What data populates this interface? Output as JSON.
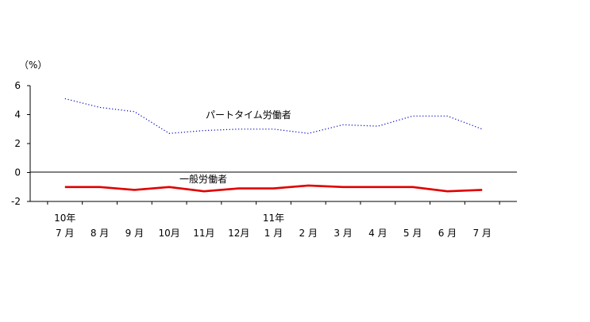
{
  "chart_data": {
    "type": "line",
    "y_unit_label": "（%）",
    "ylim": [
      -2,
      6
    ],
    "y_ticks": [
      6,
      4,
      2,
      0,
      -2
    ],
    "categories": [
      {
        "year": "10年",
        "month": "7 月"
      },
      {
        "year": "",
        "month": "8 月"
      },
      {
        "year": "",
        "month": "9 月"
      },
      {
        "year": "",
        "month": "10月"
      },
      {
        "year": "",
        "month": "11月"
      },
      {
        "year": "",
        "month": "12月"
      },
      {
        "year": "11年",
        "month": "1 月"
      },
      {
        "year": "",
        "month": "2 月"
      },
      {
        "year": "",
        "month": "3 月"
      },
      {
        "year": "",
        "month": "4 月"
      },
      {
        "year": "",
        "month": "5 月"
      },
      {
        "year": "",
        "month": "6 月"
      },
      {
        "year": "",
        "month": "7 月"
      }
    ],
    "series": [
      {
        "name": "パートタイム労働者",
        "color": "#0000c0",
        "style": "dotted",
        "values": [
          5.1,
          4.5,
          4.2,
          2.7,
          2.9,
          3.0,
          3.0,
          2.7,
          3.3,
          3.2,
          3.9,
          3.9,
          3.0
        ]
      },
      {
        "name": "一般労働者",
        "color": "#e00000",
        "style": "solid",
        "values": [
          -1.0,
          -1.0,
          -1.2,
          -1.0,
          -1.3,
          -1.1,
          -1.1,
          -0.9,
          -1.0,
          -1.0,
          -1.0,
          -1.3,
          -1.2
        ]
      }
    ]
  }
}
